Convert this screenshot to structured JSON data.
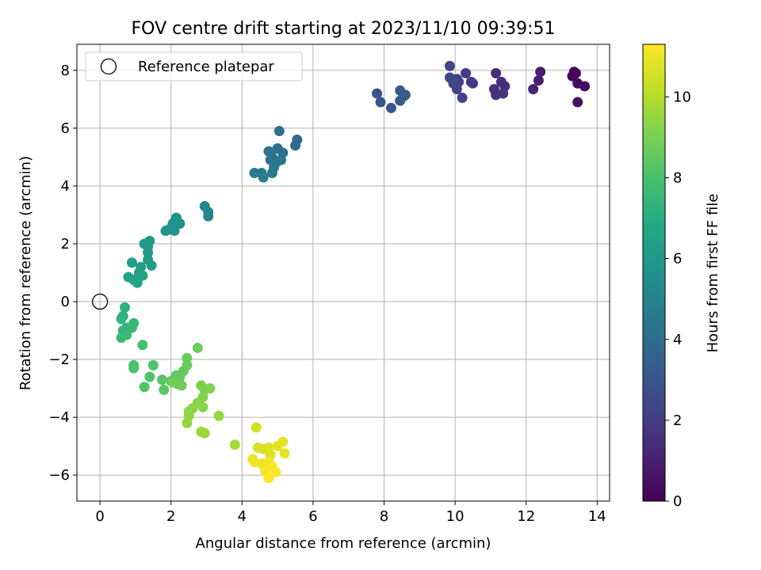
{
  "chart_data": {
    "type": "scatter",
    "title": "FOV centre drift starting at 2023/11/10 09:39:51",
    "xlabel": "Angular distance from reference (arcmin)",
    "ylabel": "Rotation from reference (arcmin)",
    "xlim": [
      -0.65,
      14.35
    ],
    "ylim": [
      -6.9,
      8.9
    ],
    "xticks": [
      0,
      2,
      4,
      6,
      8,
      10,
      12,
      14
    ],
    "yticks": [
      -6,
      -4,
      -2,
      0,
      2,
      4,
      6,
      8
    ],
    "grid": true,
    "legend": {
      "position": "top-left",
      "entries": [
        "Reference platepar"
      ]
    },
    "reference_point": {
      "x": 0,
      "y": 0,
      "label": "Reference platepar"
    },
    "colorbar": {
      "label": "Hours from first FF file",
      "colormap": "viridis",
      "range": [
        0,
        11.3
      ],
      "ticks": [
        0,
        2,
        4,
        6,
        8,
        10
      ]
    },
    "points": [
      {
        "x": 13.35,
        "y": 7.95,
        "t": 0.1
      },
      {
        "x": 13.3,
        "y": 7.8,
        "t": 0.2
      },
      {
        "x": 13.45,
        "y": 7.55,
        "t": 0.3
      },
      {
        "x": 13.65,
        "y": 7.45,
        "t": 0.4
      },
      {
        "x": 13.45,
        "y": 6.9,
        "t": 0.5
      },
      {
        "x": 13.4,
        "y": 7.9,
        "t": 0.15
      },
      {
        "x": 12.4,
        "y": 7.95,
        "t": 0.9
      },
      {
        "x": 12.35,
        "y": 7.65,
        "t": 1.0
      },
      {
        "x": 12.2,
        "y": 7.35,
        "t": 1.1
      },
      {
        "x": 11.3,
        "y": 7.6,
        "t": 1.4
      },
      {
        "x": 11.4,
        "y": 7.45,
        "t": 1.5
      },
      {
        "x": 11.1,
        "y": 7.35,
        "t": 1.55
      },
      {
        "x": 11.15,
        "y": 7.15,
        "t": 1.6
      },
      {
        "x": 11.35,
        "y": 7.2,
        "t": 1.65
      },
      {
        "x": 11.15,
        "y": 7.9,
        "t": 1.45
      },
      {
        "x": 10.45,
        "y": 7.6,
        "t": 1.9
      },
      {
        "x": 10.5,
        "y": 7.55,
        "t": 1.95
      },
      {
        "x": 10.3,
        "y": 7.9,
        "t": 2.0
      },
      {
        "x": 10.05,
        "y": 7.7,
        "t": 2.1
      },
      {
        "x": 10.1,
        "y": 7.6,
        "t": 2.15
      },
      {
        "x": 9.95,
        "y": 7.55,
        "t": 2.2
      },
      {
        "x": 10.05,
        "y": 7.35,
        "t": 2.25
      },
      {
        "x": 10.2,
        "y": 7.05,
        "t": 2.3
      },
      {
        "x": 9.85,
        "y": 7.75,
        "t": 2.35
      },
      {
        "x": 9.85,
        "y": 8.15,
        "t": 2.4
      },
      {
        "x": 9.95,
        "y": 7.6,
        "t": 2.45
      },
      {
        "x": 7.8,
        "y": 7.2,
        "t": 2.9
      },
      {
        "x": 7.9,
        "y": 6.9,
        "t": 3.0
      },
      {
        "x": 8.2,
        "y": 6.7,
        "t": 3.05
      },
      {
        "x": 8.45,
        "y": 7.3,
        "t": 3.1
      },
      {
        "x": 8.45,
        "y": 6.95,
        "t": 3.15
      },
      {
        "x": 8.55,
        "y": 7.1,
        "t": 3.2
      },
      {
        "x": 8.6,
        "y": 7.15,
        "t": 3.25
      },
      {
        "x": 5.55,
        "y": 5.6,
        "t": 3.9
      },
      {
        "x": 5.5,
        "y": 5.4,
        "t": 4.0
      },
      {
        "x": 5.05,
        "y": 5.9,
        "t": 4.1
      },
      {
        "x": 5.0,
        "y": 5.3,
        "t": 4.15
      },
      {
        "x": 5.15,
        "y": 5.15,
        "t": 4.2
      },
      {
        "x": 4.75,
        "y": 5.2,
        "t": 4.25
      },
      {
        "x": 4.85,
        "y": 5.0,
        "t": 4.3
      },
      {
        "x": 4.95,
        "y": 4.8,
        "t": 4.35
      },
      {
        "x": 5.1,
        "y": 4.9,
        "t": 4.4
      },
      {
        "x": 4.8,
        "y": 4.9,
        "t": 4.45
      },
      {
        "x": 4.9,
        "y": 4.65,
        "t": 4.5
      },
      {
        "x": 4.85,
        "y": 4.45,
        "t": 4.55
      },
      {
        "x": 4.55,
        "y": 4.45,
        "t": 4.6
      },
      {
        "x": 4.35,
        "y": 4.45,
        "t": 4.65
      },
      {
        "x": 4.6,
        "y": 4.3,
        "t": 4.7
      },
      {
        "x": 2.95,
        "y": 3.3,
        "t": 5.1
      },
      {
        "x": 3.05,
        "y": 3.1,
        "t": 5.15
      },
      {
        "x": 3.05,
        "y": 2.95,
        "t": 5.2
      },
      {
        "x": 2.15,
        "y": 2.9,
        "t": 5.6
      },
      {
        "x": 2.25,
        "y": 2.7,
        "t": 5.65
      },
      {
        "x": 2.05,
        "y": 2.7,
        "t": 5.7
      },
      {
        "x": 1.95,
        "y": 2.5,
        "t": 5.75
      },
      {
        "x": 1.85,
        "y": 2.45,
        "t": 5.8
      },
      {
        "x": 2.1,
        "y": 2.45,
        "t": 5.85
      },
      {
        "x": 1.4,
        "y": 2.1,
        "t": 6.0
      },
      {
        "x": 1.25,
        "y": 2.0,
        "t": 6.05
      },
      {
        "x": 1.35,
        "y": 1.9,
        "t": 6.1
      },
      {
        "x": 1.35,
        "y": 1.7,
        "t": 6.15
      },
      {
        "x": 1.35,
        "y": 1.45,
        "t": 6.2
      },
      {
        "x": 1.45,
        "y": 1.25,
        "t": 6.25
      },
      {
        "x": 1.15,
        "y": 1.2,
        "t": 6.3
      },
      {
        "x": 0.9,
        "y": 1.35,
        "t": 6.35
      },
      {
        "x": 1.1,
        "y": 1.0,
        "t": 6.4
      },
      {
        "x": 1.2,
        "y": 0.9,
        "t": 6.45
      },
      {
        "x": 0.8,
        "y": 0.85,
        "t": 6.5
      },
      {
        "x": 0.95,
        "y": 0.75,
        "t": 6.55
      },
      {
        "x": 1.05,
        "y": 0.65,
        "t": 6.6
      },
      {
        "x": 0.7,
        "y": -0.2,
        "t": 7.2
      },
      {
        "x": 0.65,
        "y": -0.5,
        "t": 7.25
      },
      {
        "x": 0.6,
        "y": -0.6,
        "t": 7.3
      },
      {
        "x": 0.75,
        "y": -0.9,
        "t": 7.35
      },
      {
        "x": 0.65,
        "y": -1.0,
        "t": 7.4
      },
      {
        "x": 0.9,
        "y": -0.9,
        "t": 7.45
      },
      {
        "x": 0.95,
        "y": -0.75,
        "t": 7.5
      },
      {
        "x": 0.75,
        "y": -1.15,
        "t": 7.55
      },
      {
        "x": 0.6,
        "y": -1.25,
        "t": 7.6
      },
      {
        "x": 1.2,
        "y": -1.5,
        "t": 7.9
      },
      {
        "x": 0.95,
        "y": -2.2,
        "t": 8.0
      },
      {
        "x": 0.95,
        "y": -2.3,
        "t": 8.05
      },
      {
        "x": 1.5,
        "y": -2.2,
        "t": 8.1
      },
      {
        "x": 1.4,
        "y": -2.6,
        "t": 8.15
      },
      {
        "x": 1.25,
        "y": -2.95,
        "t": 8.2
      },
      {
        "x": 1.75,
        "y": -2.7,
        "t": 8.3
      },
      {
        "x": 1.8,
        "y": -3.05,
        "t": 8.35
      },
      {
        "x": 2.0,
        "y": -2.75,
        "t": 8.4
      },
      {
        "x": 2.15,
        "y": -2.55,
        "t": 8.45
      },
      {
        "x": 2.25,
        "y": -2.6,
        "t": 8.5
      },
      {
        "x": 2.2,
        "y": -2.85,
        "t": 8.55
      },
      {
        "x": 2.35,
        "y": -2.4,
        "t": 8.6
      },
      {
        "x": 2.45,
        "y": -2.2,
        "t": 8.65
      },
      {
        "x": 2.45,
        "y": -1.95,
        "t": 8.7
      },
      {
        "x": 2.75,
        "y": -1.6,
        "t": 8.75
      },
      {
        "x": 2.3,
        "y": -2.9,
        "t": 8.8
      },
      {
        "x": 2.05,
        "y": -2.8,
        "t": 8.85
      },
      {
        "x": 2.85,
        "y": -2.9,
        "t": 9.0
      },
      {
        "x": 2.95,
        "y": -3.05,
        "t": 9.05
      },
      {
        "x": 3.1,
        "y": -3.0,
        "t": 9.1
      },
      {
        "x": 2.9,
        "y": -3.3,
        "t": 9.15
      },
      {
        "x": 2.75,
        "y": -3.5,
        "t": 9.2
      },
      {
        "x": 2.9,
        "y": -3.65,
        "t": 9.25
      },
      {
        "x": 2.6,
        "y": -3.7,
        "t": 9.3
      },
      {
        "x": 2.5,
        "y": -3.8,
        "t": 9.35
      },
      {
        "x": 2.5,
        "y": -3.95,
        "t": 9.4
      },
      {
        "x": 2.45,
        "y": -4.2,
        "t": 9.45
      },
      {
        "x": 3.35,
        "y": -3.95,
        "t": 9.5
      },
      {
        "x": 2.85,
        "y": -4.5,
        "t": 9.55
      },
      {
        "x": 2.95,
        "y": -4.55,
        "t": 9.6
      },
      {
        "x": 3.8,
        "y": -4.95,
        "t": 9.8
      },
      {
        "x": 4.4,
        "y": -4.35,
        "t": 10.5
      },
      {
        "x": 4.45,
        "y": -5.05,
        "t": 10.6
      },
      {
        "x": 4.6,
        "y": -5.1,
        "t": 10.65
      },
      {
        "x": 4.75,
        "y": -5.05,
        "t": 10.7
      },
      {
        "x": 4.8,
        "y": -5.3,
        "t": 10.75
      },
      {
        "x": 5.15,
        "y": -4.85,
        "t": 10.8
      },
      {
        "x": 5.0,
        "y": -5.0,
        "t": 10.85
      },
      {
        "x": 5.2,
        "y": -5.25,
        "t": 10.9
      },
      {
        "x": 4.3,
        "y": -5.45,
        "t": 10.95
      },
      {
        "x": 4.35,
        "y": -5.55,
        "t": 11.0
      },
      {
        "x": 4.55,
        "y": -5.6,
        "t": 11.05
      },
      {
        "x": 4.75,
        "y": -5.55,
        "t": 11.1
      },
      {
        "x": 4.85,
        "y": -5.7,
        "t": 11.15
      },
      {
        "x": 4.65,
        "y": -5.85,
        "t": 11.2
      },
      {
        "x": 4.95,
        "y": -5.9,
        "t": 11.25
      },
      {
        "x": 4.75,
        "y": -6.1,
        "t": 11.3
      }
    ]
  }
}
